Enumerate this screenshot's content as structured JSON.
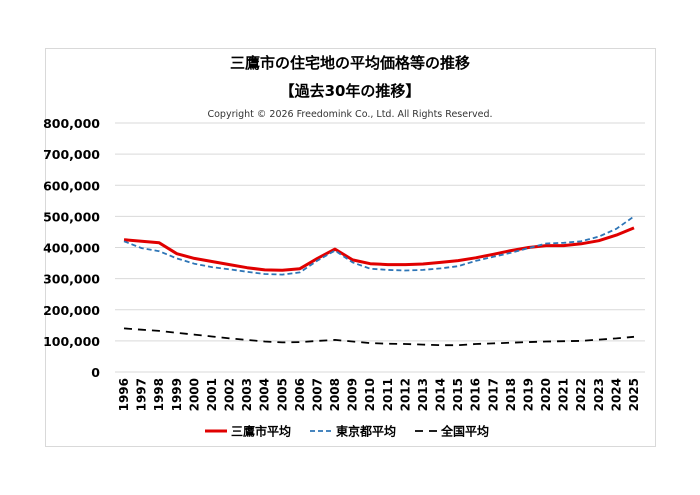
{
  "chart_data": {
    "type": "line",
    "title": "三鷹市の住宅地の平均価格等の推移",
    "subtitle": "【過去30年の推移】",
    "copyright": "Copyright © 2026 Freedomink Co., Ltd. All Rights Reserved.",
    "xlabel": "",
    "ylabel": "",
    "ylim": [
      0,
      800000
    ],
    "yticks": [
      "0",
      "100,000",
      "200,000",
      "300,000",
      "400,000",
      "500,000",
      "600,000",
      "700,000",
      "800,000"
    ],
    "grid": true,
    "legend": "bottom",
    "x": [
      "1996",
      "1997",
      "1998",
      "1999",
      "2000",
      "2001",
      "2002",
      "2003",
      "2004",
      "2005",
      "2006",
      "2007",
      "2008",
      "2009",
      "2010",
      "2011",
      "2012",
      "2013",
      "2014",
      "2015",
      "2016",
      "2017",
      "2018",
      "2019",
      "2020",
      "2021",
      "2022",
      "2023",
      "2024",
      "2025"
    ],
    "series": [
      {
        "name": "三鷹市平均",
        "color": "#e00000",
        "style": "solid",
        "values": [
          425000,
          420000,
          415000,
          380000,
          365000,
          355000,
          345000,
          335000,
          328000,
          327000,
          332000,
          365000,
          395000,
          360000,
          348000,
          345000,
          345000,
          347000,
          352000,
          358000,
          367000,
          378000,
          390000,
          400000,
          406000,
          406000,
          412000,
          422000,
          440000,
          463000
        ]
      },
      {
        "name": "東京都平均",
        "color": "#2e75b6",
        "style": "dashed",
        "values": [
          420000,
          398000,
          388000,
          365000,
          348000,
          337000,
          330000,
          322000,
          315000,
          313000,
          320000,
          358000,
          390000,
          352000,
          332000,
          328000,
          326000,
          328000,
          333000,
          340000,
          357000,
          370000,
          383000,
          398000,
          413000,
          415000,
          420000,
          435000,
          460000,
          500000
        ]
      },
      {
        "name": "全国平均",
        "color": "#000000",
        "style": "dashed",
        "values": [
          140000,
          136000,
          132000,
          126000,
          120000,
          114000,
          108000,
          103000,
          98000,
          95000,
          96000,
          100000,
          103000,
          98000,
          93000,
          91000,
          90000,
          88000,
          86000,
          86000,
          90000,
          92000,
          94000,
          96000,
          98000,
          99000,
          100000,
          104000,
          108000,
          113000
        ]
      }
    ]
  }
}
